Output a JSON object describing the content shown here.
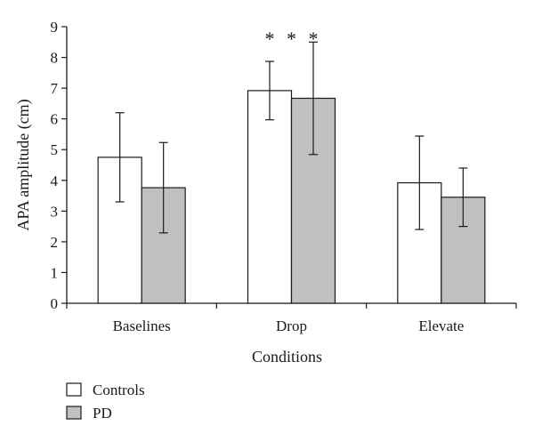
{
  "chart_data": {
    "type": "bar",
    "title": "",
    "xlabel": "Conditions",
    "ylabel": "APA amplitude (cm)",
    "categories": [
      "Baselines",
      "Drop",
      "Elevate"
    ],
    "ylim": [
      0,
      9
    ],
    "yticks": [
      "0",
      "1",
      "2",
      "3",
      "4",
      "5",
      "6",
      "7",
      "8",
      "9"
    ],
    "grid": false,
    "legend_position": "bottom-left",
    "series": [
      {
        "name": "Controls",
        "color": "#ffffff",
        "values": [
          4.75,
          6.92,
          3.92
        ],
        "errors": [
          1.45,
          0.95,
          1.52
        ]
      },
      {
        "name": "PD",
        "color": "#c0c0c0",
        "values": [
          3.76,
          6.67,
          3.45
        ],
        "errors": [
          1.47,
          1.83,
          0.95
        ]
      }
    ],
    "annotations": [
      {
        "category": "Drop",
        "text": "* * *"
      }
    ]
  }
}
